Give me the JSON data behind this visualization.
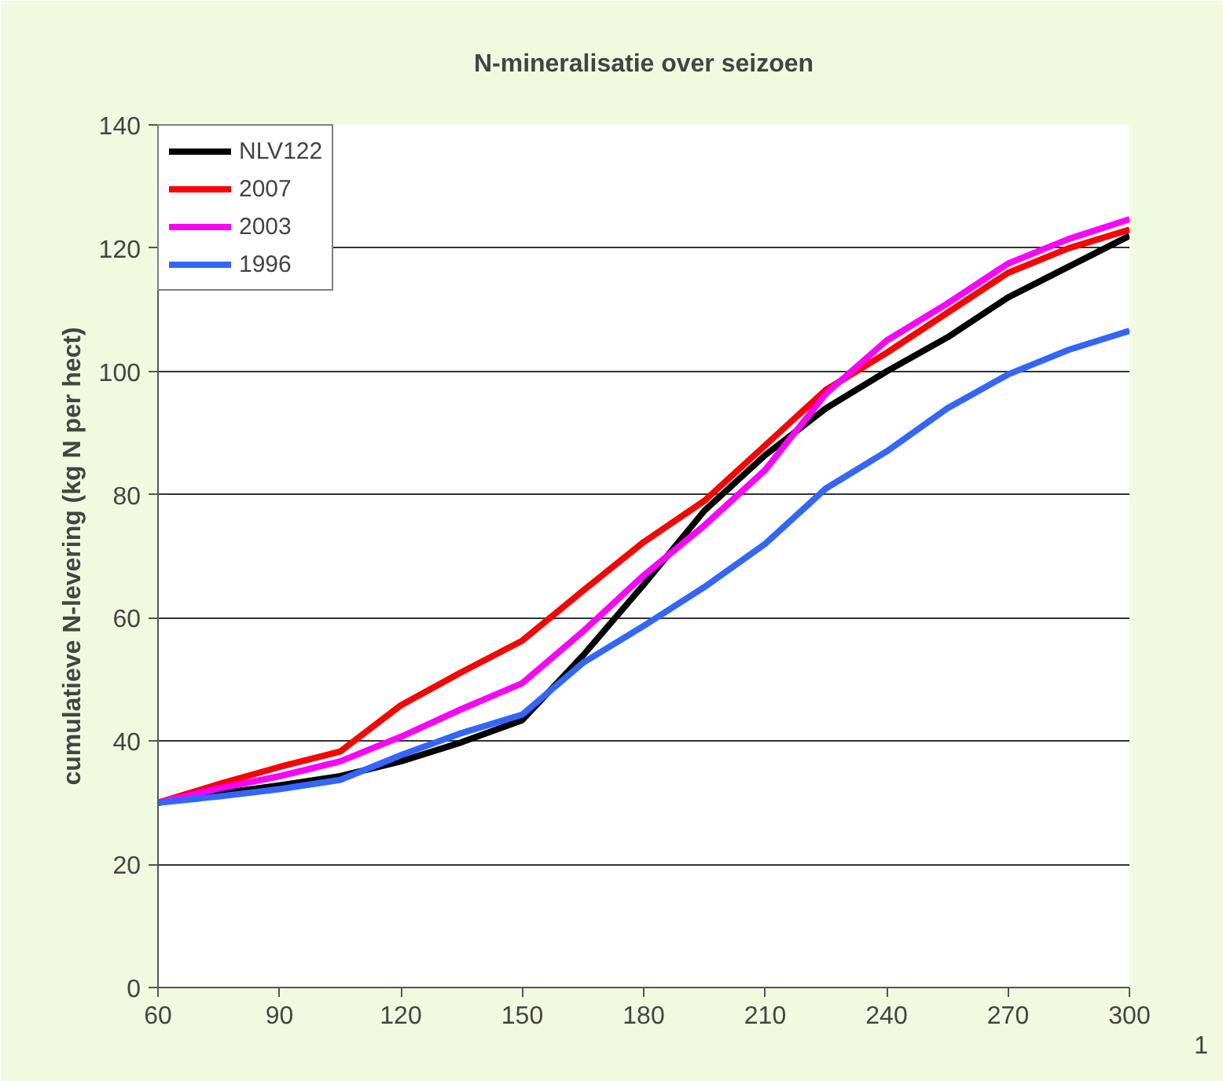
{
  "chart_data": {
    "type": "line",
    "title": "N-mineralisatie over seizoen",
    "ylabel": "cumulatieve N-levering (kg N per hect)",
    "x": [
      60,
      75,
      90,
      105,
      120,
      135,
      150,
      165,
      180,
      195,
      210,
      225,
      240,
      255,
      270,
      285,
      300
    ],
    "series": [
      {
        "name": "NLV122",
        "color": "#000000",
        "values": [
          30,
          31.5,
          32.8,
          34.3,
          36.7,
          39.8,
          43.4,
          53.9,
          65.4,
          77.4,
          86.4,
          94,
          100,
          105.5,
          112,
          117,
          122
        ]
      },
      {
        "name": "2007",
        "color": "#ff0000",
        "values": [
          30,
          33,
          35.8,
          38.3,
          45.8,
          51.2,
          56.3,
          64.4,
          72.3,
          79,
          88,
          97,
          103,
          109.5,
          116,
          120,
          123
        ]
      },
      {
        "name": "2003",
        "color": "#ff00ff",
        "values": [
          30,
          32.3,
          34.3,
          36.7,
          40.7,
          45.2,
          49.4,
          57.8,
          66.9,
          75,
          84,
          96.4,
          105,
          111,
          117.5,
          121.5,
          124.7
        ]
      },
      {
        "name": "1996",
        "color": "#3366ff",
        "values": [
          30,
          31,
          32.2,
          33.7,
          37.7,
          41.3,
          44.3,
          52.7,
          58.7,
          65,
          72,
          81,
          87,
          94,
          99.5,
          103.5,
          106.6
        ]
      }
    ],
    "xlim": [
      60,
      300
    ],
    "xticks": [
      60,
      90,
      120,
      150,
      180,
      210,
      240,
      270,
      300
    ],
    "ylim": [
      0,
      140
    ],
    "yticks": [
      0,
      20,
      40,
      60,
      80,
      100,
      120,
      140
    ],
    "grid": "y",
    "legend": "top left",
    "marker": "none",
    "line_style": "solid",
    "annotations": [
      "1"
    ]
  }
}
